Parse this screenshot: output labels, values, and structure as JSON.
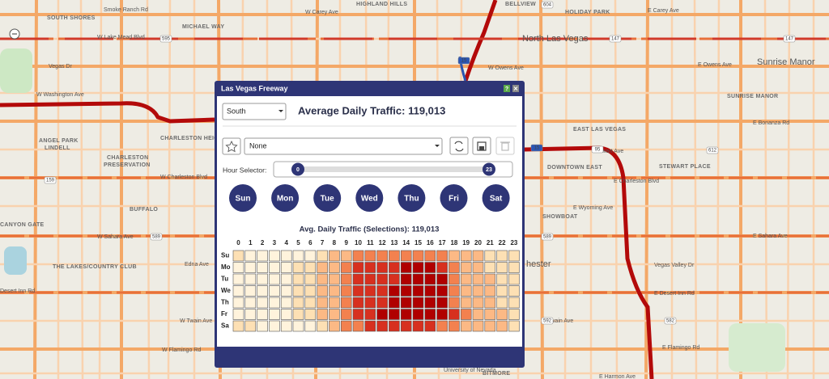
{
  "map": {
    "labels": [
      "SOUTH SHORES",
      "Smoke Ranch Rd",
      "HIGHLAND HILLS",
      "W Carey Ave",
      "BELLVIEW",
      "HOLIDAY PARK",
      "E Carey Ave",
      "MICHAEL WAY",
      "W Lake Mead Blvd",
      "North Las Vegas",
      "Sunrise Manor",
      "Vegas Dr",
      "W Owens Ave",
      "E Owens Ave",
      "W Washington Ave",
      "SUNRISE MANOR",
      "E Bonanza Rd",
      "ANGEL PARK",
      "LINDELL",
      "CHARLESTON HEIGHTS",
      "CHARLESTON",
      "PRESERVATION",
      "EAST LAS VEGAS",
      "Stewart Ave",
      "DOWNTOWN EAST",
      "STEWART PLACE",
      "W Charleston Blvd",
      "E Charleston Blvd",
      "CANYON GATE",
      "BUFFALO",
      "SHOWBOAT",
      "E Wyoming Ave",
      "W Sahara Ave",
      "E Sahara Ave",
      "THE LAKES/COUNTRY CLUB",
      "Edna Ave",
      "Vegas Valley Dr",
      "Desert Inn Rd",
      "E Desert Inn Rd",
      "W Twain Ave",
      "E Twain Ave",
      "W Flamingo Rd",
      "E Flamingo Rd",
      "University of Nevada",
      "BITMORE",
      "E Harmon Ave",
      "hester"
    ],
    "shields": [
      "595",
      "147",
      "147",
      "604",
      "15",
      "159",
      "589",
      "582",
      "612",
      "95",
      "15",
      "589",
      "592"
    ]
  },
  "panel": {
    "title": "Las Vegas Freeway",
    "direction": "South",
    "summary": "Average Daily Traffic: 119,013",
    "selection": "None",
    "hour_selector_label": "Hour Selector:",
    "hour_range": [
      0,
      23
    ],
    "days": [
      "Sun",
      "Mon",
      "Tue",
      "Wed",
      "Thu",
      "Fri",
      "Sat"
    ],
    "heatmap": {
      "title": "Avg. Daily Traffic (Selections): 119,013",
      "hours": [
        0,
        1,
        2,
        3,
        4,
        5,
        6,
        7,
        8,
        9,
        10,
        11,
        12,
        13,
        14,
        15,
        16,
        17,
        18,
        19,
        20,
        21,
        22,
        23
      ],
      "rows": [
        "Su",
        "Mo",
        "Tu",
        "We",
        "Th",
        "Fr",
        "Sa"
      ],
      "colors": [
        "#fff3dc",
        "#fde0b4",
        "#fcb985",
        "#f3814f",
        "#d7301f",
        "#b00000"
      ],
      "levels": [
        [
          1,
          0,
          0,
          0,
          0,
          0,
          0,
          1,
          2,
          2,
          3,
          3,
          3,
          3,
          3,
          3,
          3,
          3,
          2,
          2,
          2,
          1,
          1,
          1
        ],
        [
          0,
          0,
          0,
          0,
          0,
          1,
          1,
          2,
          2,
          3,
          4,
          4,
          4,
          4,
          5,
          5,
          5,
          4,
          3,
          2,
          2,
          1,
          1,
          1
        ],
        [
          0,
          0,
          0,
          0,
          0,
          1,
          1,
          2,
          2,
          3,
          4,
          4,
          4,
          4,
          5,
          5,
          5,
          5,
          3,
          2,
          2,
          2,
          1,
          1
        ],
        [
          0,
          0,
          0,
          0,
          0,
          1,
          1,
          2,
          2,
          3,
          4,
          4,
          4,
          5,
          5,
          5,
          5,
          5,
          3,
          2,
          2,
          2,
          1,
          1
        ],
        [
          0,
          0,
          0,
          0,
          0,
          1,
          1,
          2,
          2,
          3,
          4,
          4,
          4,
          5,
          5,
          5,
          5,
          5,
          3,
          2,
          2,
          2,
          1,
          1
        ],
        [
          0,
          0,
          0,
          0,
          0,
          1,
          1,
          2,
          2,
          3,
          4,
          4,
          5,
          5,
          5,
          5,
          5,
          5,
          4,
          3,
          2,
          2,
          2,
          1
        ],
        [
          1,
          1,
          0,
          0,
          0,
          0,
          0,
          1,
          2,
          3,
          3,
          4,
          4,
          4,
          4,
          4,
          4,
          3,
          3,
          2,
          2,
          2,
          2,
          1
        ]
      ]
    }
  }
}
